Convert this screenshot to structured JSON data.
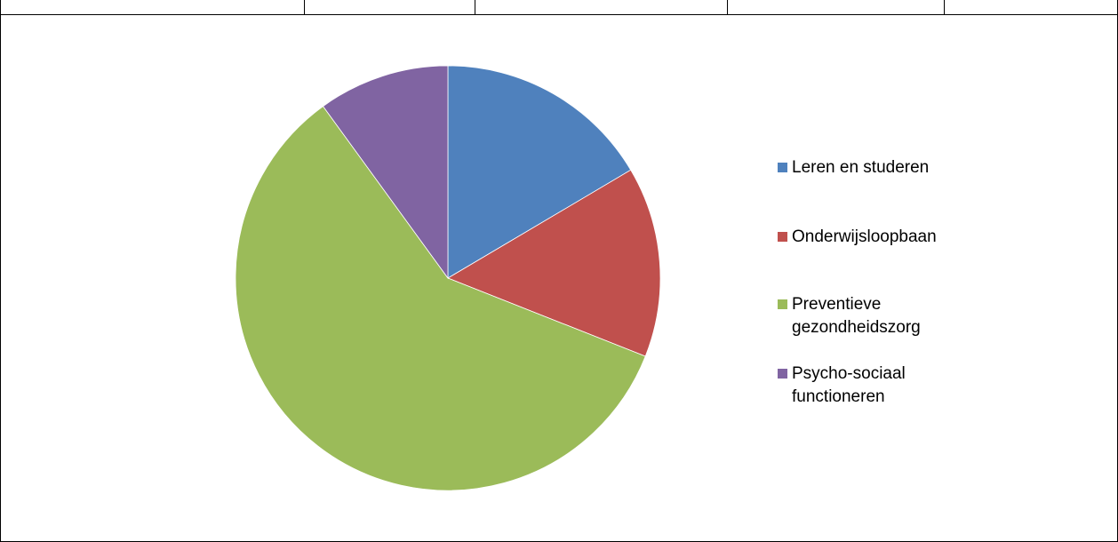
{
  "chart_data": {
    "type": "pie",
    "title": "",
    "slices": [
      {
        "label": "Leren en studeren",
        "value": 16.5,
        "color": "#4F81BD"
      },
      {
        "label": "Onderwijsloopbaan",
        "value": 14.5,
        "color": "#C0504D"
      },
      {
        "label": "Preventieve gezondheidszorg",
        "value": 59,
        "color": "#9BBB59"
      },
      {
        "label": "Psycho-sociaal functioneren",
        "value": 10,
        "color": "#8064A2"
      }
    ],
    "legend_position": "right"
  },
  "legend": {
    "items": [
      {
        "line1": "Leren en studeren",
        "line2": ""
      },
      {
        "line1": "Onderwijsloopbaan",
        "line2": ""
      },
      {
        "line1": "Preventieve",
        "line2": "gezondheidszorg"
      },
      {
        "line1": "Psycho-sociaal",
        "line2": "functioneren"
      }
    ]
  }
}
